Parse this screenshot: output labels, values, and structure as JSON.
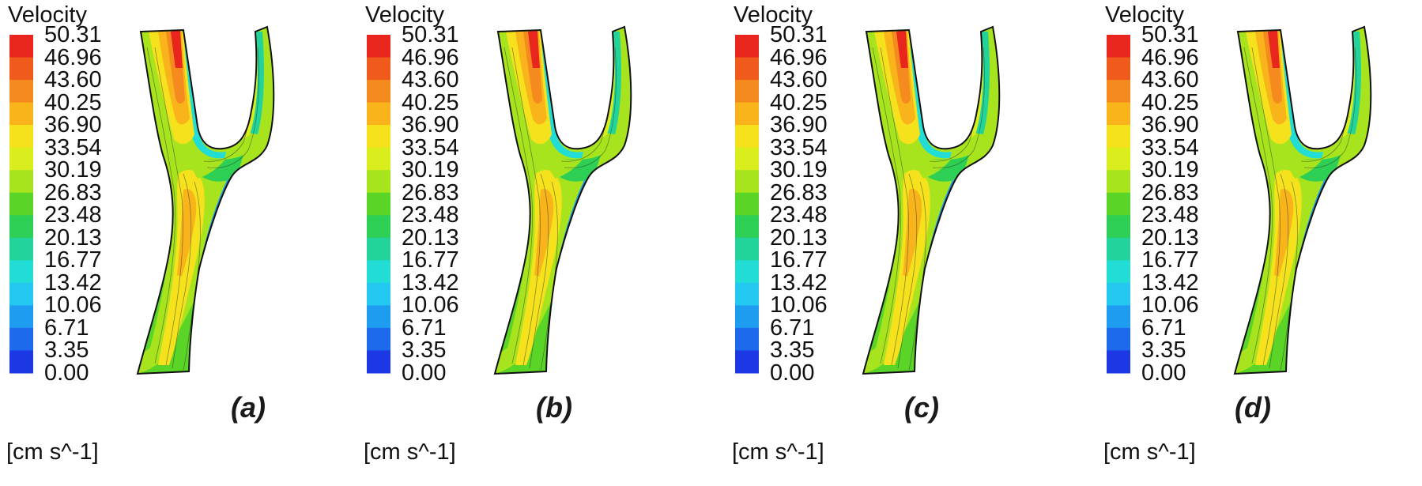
{
  "chart_data": {
    "type": "heatmap",
    "title": "Velocity",
    "units": "[cm s^-1]",
    "colorbar": {
      "ticks": [
        "50.31",
        "46.96",
        "43.60",
        "40.25",
        "36.90",
        "33.54",
        "30.19",
        "26.83",
        "23.48",
        "20.13",
        "16.77",
        "13.42",
        "10.06",
        "6.71",
        "3.35",
        "0.00"
      ],
      "range": [
        0.0,
        50.31
      ],
      "colors": [
        "#e8261e",
        "#f05a1a",
        "#f58a1e",
        "#f8b41a",
        "#f6e21c",
        "#d9ee1c",
        "#a8e41e",
        "#5ad427",
        "#2ecf55",
        "#22d49c",
        "#22dcd6",
        "#22c8f0",
        "#1e9cf0",
        "#1e6aec",
        "#1c38e4"
      ]
    },
    "panels": [
      {
        "label": "(a)"
      },
      {
        "label": "(b)"
      },
      {
        "label": "(c)"
      },
      {
        "label": "(d)"
      }
    ]
  }
}
